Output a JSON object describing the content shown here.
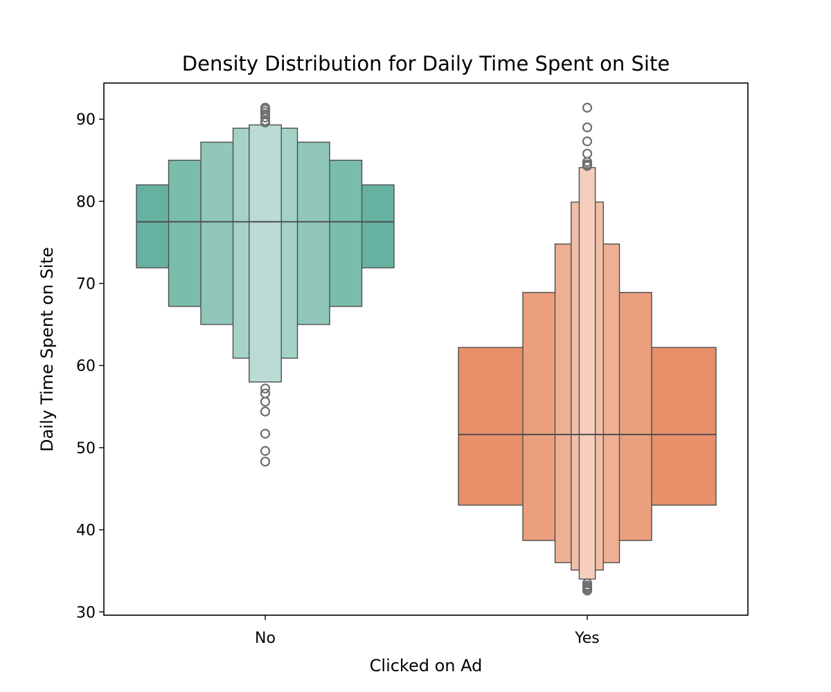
{
  "chart_data": {
    "type": "boxen",
    "title": "Density Distribution for Daily Time Spent on Site",
    "xlabel": "Clicked on Ad",
    "ylabel": "Daily Time Spent on Site",
    "categories": [
      "No",
      "Yes"
    ],
    "ylim": [
      29.6,
      94.4
    ],
    "yticks": [
      30,
      40,
      50,
      60,
      70,
      80,
      90
    ],
    "grid": false,
    "groups": [
      {
        "category": "No",
        "color": "#66b2a0",
        "median": 77.5,
        "letter_values": [
          {
            "low": 71.9,
            "high": 82.0,
            "width": 1.0
          },
          {
            "low": 67.2,
            "high": 85.0,
            "width": 0.75
          },
          {
            "low": 65.0,
            "high": 87.2,
            "width": 0.5
          },
          {
            "low": 60.9,
            "high": 88.9,
            "width": 0.25
          },
          {
            "low": 58.0,
            "high": 89.3,
            "width": 0.125
          }
        ],
        "outliers": [
          57.2,
          56.6,
          55.6,
          54.4,
          51.7,
          49.6,
          48.3,
          89.6,
          89.8,
          90.2,
          90.6,
          90.9,
          91.2,
          91.4
        ]
      },
      {
        "category": "Yes",
        "color": "#e8906a",
        "median": 51.6,
        "letter_values": [
          {
            "low": 43.0,
            "high": 62.2,
            "width": 1.0
          },
          {
            "low": 38.7,
            "high": 68.9,
            "width": 0.5
          },
          {
            "low": 36.0,
            "high": 74.8,
            "width": 0.25
          },
          {
            "low": 35.1,
            "high": 79.9,
            "width": 0.125
          },
          {
            "low": 34.0,
            "high": 84.1,
            "width": 0.0625
          }
        ],
        "outliers": [
          33.5,
          33.2,
          33.0,
          32.8,
          32.6,
          84.3,
          84.5,
          84.8,
          85.8,
          87.3,
          89.0,
          91.4
        ]
      }
    ]
  }
}
